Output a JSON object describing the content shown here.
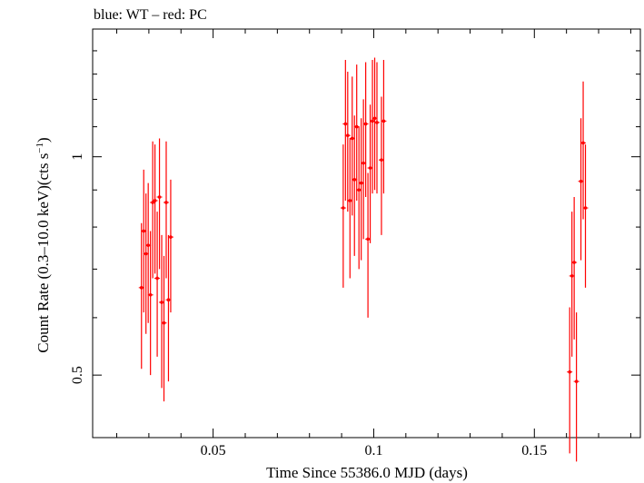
{
  "chart_data": {
    "type": "scatter",
    "title": "blue: WT – red: PC",
    "xlabel": "Time Since 55386.0 MJD (days)",
    "ylabel": "Count Rate (0.3–10.0 keV)(cts s",
    "ylabel_superscript": "−1",
    "ylabel_close": ")",
    "y_scale": "log",
    "xlim": [
      0.0125,
      0.183
    ],
    "ylim": [
      0.41,
      1.5
    ],
    "x_ticks": [
      {
        "value": 0.05,
        "label": "0.05"
      },
      {
        "value": 0.1,
        "label": "0.1"
      },
      {
        "value": 0.15,
        "label": "0.15"
      }
    ],
    "y_ticks": [
      {
        "value": 0.5,
        "label": "0.5"
      },
      {
        "value": 1,
        "label": "1"
      }
    ],
    "grid": false,
    "series": [
      {
        "name": "PC",
        "color": "#ff0000",
        "points": [
          {
            "x": 0.0277,
            "y": 0.66,
            "ylo": 0.51,
            "yhi": 0.81
          },
          {
            "x": 0.0284,
            "y": 0.79,
            "ylo": 0.61,
            "yhi": 0.96
          },
          {
            "x": 0.0291,
            "y": 0.735,
            "ylo": 0.57,
            "yhi": 0.89
          },
          {
            "x": 0.0298,
            "y": 0.755,
            "ylo": 0.59,
            "yhi": 0.92
          },
          {
            "x": 0.0305,
            "y": 0.645,
            "ylo": 0.5,
            "yhi": 0.79
          },
          {
            "x": 0.0312,
            "y": 0.865,
            "ylo": 0.68,
            "yhi": 1.05
          },
          {
            "x": 0.0319,
            "y": 0.87,
            "ylo": 0.69,
            "yhi": 1.04
          },
          {
            "x": 0.0326,
            "y": 0.68,
            "ylo": 0.53,
            "yhi": 0.84
          },
          {
            "x": 0.0333,
            "y": 0.88,
            "ylo": 0.7,
            "yhi": 1.06
          },
          {
            "x": 0.034,
            "y": 0.63,
            "ylo": 0.48,
            "yhi": 0.78
          },
          {
            "x": 0.0347,
            "y": 0.59,
            "ylo": 0.46,
            "yhi": 0.73
          },
          {
            "x": 0.0354,
            "y": 0.865,
            "ylo": 0.68,
            "yhi": 1.05
          },
          {
            "x": 0.0361,
            "y": 0.635,
            "ylo": 0.49,
            "yhi": 0.78
          },
          {
            "x": 0.0368,
            "y": 0.775,
            "ylo": 0.61,
            "yhi": 0.93
          },
          {
            "x": 0.0905,
            "y": 0.85,
            "ylo": 0.66,
            "yhi": 1.04
          },
          {
            "x": 0.0912,
            "y": 1.11,
            "ylo": 0.87,
            "yhi": 1.36
          },
          {
            "x": 0.0919,
            "y": 1.07,
            "ylo": 0.84,
            "yhi": 1.31
          },
          {
            "x": 0.0926,
            "y": 0.87,
            "ylo": 0.68,
            "yhi": 1.06
          },
          {
            "x": 0.0933,
            "y": 1.06,
            "ylo": 0.83,
            "yhi": 1.29
          },
          {
            "x": 0.094,
            "y": 0.93,
            "ylo": 0.73,
            "yhi": 1.14
          },
          {
            "x": 0.0947,
            "y": 1.1,
            "ylo": 0.87,
            "yhi": 1.34
          },
          {
            "x": 0.0954,
            "y": 0.9,
            "ylo": 0.7,
            "yhi": 1.1
          },
          {
            "x": 0.0961,
            "y": 0.92,
            "ylo": 0.72,
            "yhi": 1.13
          },
          {
            "x": 0.0968,
            "y": 0.98,
            "ylo": 0.77,
            "yhi": 1.2
          },
          {
            "x": 0.0975,
            "y": 1.11,
            "ylo": 0.88,
            "yhi": 1.35
          },
          {
            "x": 0.0982,
            "y": 0.77,
            "ylo": 0.6,
            "yhi": 0.95
          },
          {
            "x": 0.0989,
            "y": 0.965,
            "ylo": 0.76,
            "yhi": 1.18
          },
          {
            "x": 0.0996,
            "y": 1.12,
            "ylo": 0.89,
            "yhi": 1.36
          },
          {
            "x": 0.1003,
            "y": 1.13,
            "ylo": 0.9,
            "yhi": 1.37
          },
          {
            "x": 0.101,
            "y": 1.115,
            "ylo": 0.89,
            "yhi": 1.35
          },
          {
            "x": 0.1024,
            "y": 0.99,
            "ylo": 0.78,
            "yhi": 1.21
          },
          {
            "x": 0.1031,
            "y": 1.12,
            "ylo": 0.89,
            "yhi": 1.36
          },
          {
            "x": 0.161,
            "y": 0.505,
            "ylo": 0.39,
            "yhi": 0.62
          },
          {
            "x": 0.1617,
            "y": 0.685,
            "ylo": 0.53,
            "yhi": 0.84
          },
          {
            "x": 0.1624,
            "y": 0.715,
            "ylo": 0.56,
            "yhi": 0.88
          },
          {
            "x": 0.1631,
            "y": 0.49,
            "ylo": 0.38,
            "yhi": 0.61
          },
          {
            "x": 0.1645,
            "y": 0.925,
            "ylo": 0.72,
            "yhi": 1.13
          },
          {
            "x": 0.1652,
            "y": 1.045,
            "ylo": 0.82,
            "yhi": 1.27
          },
          {
            "x": 0.1659,
            "y": 0.85,
            "ylo": 0.66,
            "yhi": 1.04
          }
        ]
      }
    ]
  }
}
